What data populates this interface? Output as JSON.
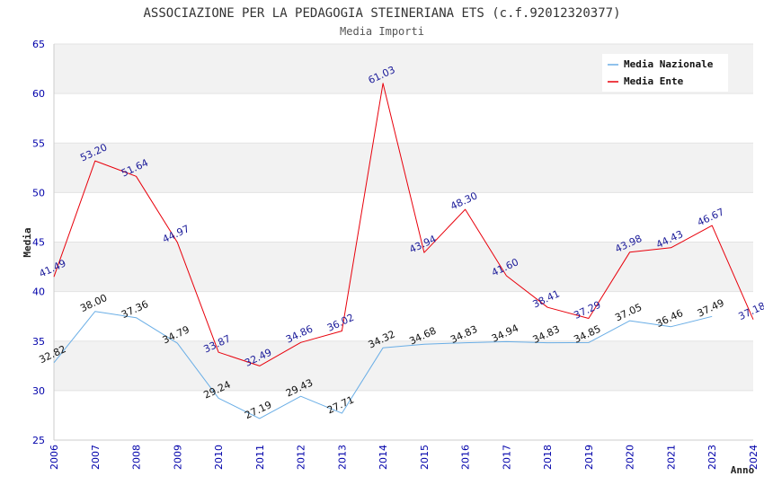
{
  "chart_data": {
    "type": "line",
    "title": "ASSOCIAZIONE PER LA PEDAGOGIA STEINERIANA ETS (c.f.92012320377)",
    "subtitle": "Media Importi",
    "xlabel": "Anno",
    "ylabel": "Media",
    "ylim": [
      25,
      65
    ],
    "yticks": [
      25,
      30,
      35,
      40,
      45,
      50,
      55,
      60,
      65
    ],
    "categories": [
      "2006",
      "2007",
      "2008",
      "2009",
      "2010",
      "2011",
      "2012",
      "2013",
      "2014",
      "2015",
      "2016",
      "2017",
      "2018",
      "2019",
      "2020",
      "2021",
      "2023",
      "2024"
    ],
    "legend_position": "top-right",
    "series": [
      {
        "name": "Media Nazionale",
        "color": "#6aaee6",
        "label_color": "#111111",
        "values": [
          32.82,
          38.0,
          37.36,
          34.79,
          29.24,
          27.19,
          29.43,
          27.71,
          34.32,
          34.68,
          34.83,
          34.94,
          34.83,
          34.85,
          37.05,
          36.46,
          37.49,
          null
        ],
        "labels": [
          "32.82",
          "38.00",
          "37.36",
          "34.79",
          "29.24",
          "27.19",
          "29.43",
          "27.71",
          "34.32",
          "34.68",
          "34.83",
          "34.94",
          "34.83",
          "34.85",
          "37.05",
          "36.46",
          "37.49",
          null
        ]
      },
      {
        "name": "Media Ente",
        "color": "#e8000b",
        "label_color": "#1a1a99",
        "values": [
          41.49,
          53.2,
          51.64,
          44.97,
          33.87,
          32.49,
          34.86,
          36.02,
          61.03,
          43.94,
          48.3,
          41.6,
          38.41,
          37.29,
          43.98,
          44.43,
          46.67,
          37.18
        ],
        "labels": [
          "41.49",
          "53.20",
          "51.64",
          "44.97",
          "33.87",
          "32.49",
          "34.86",
          "36.02",
          "61.03",
          "43.94",
          "48.30",
          "41.60",
          "38.41",
          "37.29",
          "43.98",
          "44.43",
          "46.67",
          "37.18"
        ]
      }
    ]
  }
}
